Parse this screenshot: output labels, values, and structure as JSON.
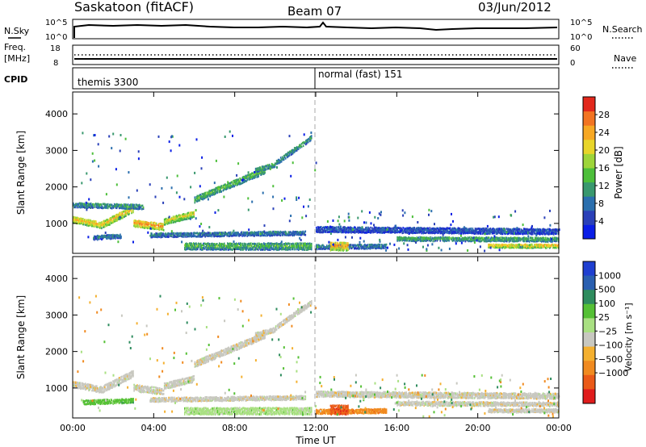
{
  "header": {
    "station": "Saskatoon (fitACF)",
    "beam": "Beam 07",
    "date": "03/Jun/2012"
  },
  "noise_panel": {
    "left_label": "N.Sky",
    "right_label": "N.Search",
    "ticks_left": [
      "10^5",
      "10^0"
    ],
    "ticks_right": [
      "10^5",
      "10^0"
    ]
  },
  "freq_panel": {
    "left_label": "Freq.",
    "left_unit": "[MHz]",
    "right_label": "Nave",
    "ticks_left": [
      "18",
      "8"
    ],
    "ticks_right": [
      "60",
      "0"
    ]
  },
  "cpid_panel": {
    "label": "CPID",
    "segments": [
      {
        "start_hour": 0,
        "text": "themis 3300"
      },
      {
        "start_hour": 12,
        "text": "normal (fast) 151"
      }
    ]
  },
  "chart_data": [
    {
      "type": "heatmap",
      "quantity": "Power",
      "ylabel": "Slant Range [km]",
      "xlabel": "Time UT",
      "xlim_hours": [
        0,
        24
      ],
      "ylim_km": [
        180,
        4600
      ],
      "yticks": [
        1000,
        2000,
        3000,
        4000
      ],
      "xticks": [
        "00:00",
        "04:00",
        "08:00",
        "12:00",
        "16:00",
        "20:00",
        "00:00"
      ],
      "colorbar": {
        "label": "Power [dB]",
        "ticks": [
          "4",
          "8",
          "12",
          "16",
          "20",
          "24",
          "28"
        ],
        "range": [
          0,
          30
        ],
        "colors": [
          "#0a1ee6",
          "#2a40b8",
          "#2b6fae",
          "#39986e",
          "#4dbf3a",
          "#9ed53a",
          "#e8d52a",
          "#f7a824",
          "#f27422",
          "#e2281c"
        ]
      },
      "bands": [
        {
          "t0": 0.0,
          "t1": 1.4,
          "r0": 1150,
          "r1": 1000,
          "w": 180,
          "level": 22
        },
        {
          "t0": 1.4,
          "t1": 3.0,
          "r0": 1000,
          "r1": 1450,
          "w": 200,
          "level": 21
        },
        {
          "t0": 3.0,
          "t1": 4.5,
          "r0": 1050,
          "r1": 950,
          "w": 200,
          "level": 24
        },
        {
          "t0": 4.5,
          "t1": 6.0,
          "r0": 1100,
          "r1": 1300,
          "w": 180,
          "level": 19
        },
        {
          "t0": 6.0,
          "t1": 9.5,
          "r0": 1700,
          "r1": 2500,
          "w": 180,
          "level": 14
        },
        {
          "t0": 9.0,
          "t1": 10.0,
          "r0": 2500,
          "r1": 2650,
          "w": 140,
          "level": 12
        },
        {
          "t0": 10.0,
          "t1": 11.8,
          "r0": 2700,
          "r1": 3400,
          "w": 140,
          "level": 11
        },
        {
          "t0": 0.0,
          "t1": 3.5,
          "r0": 1550,
          "r1": 1500,
          "w": 140,
          "level": 11
        },
        {
          "t0": 1.0,
          "t1": 2.4,
          "r0": 650,
          "r1": 700,
          "w": 120,
          "level": 9
        },
        {
          "t0": 3.8,
          "t1": 11.5,
          "r0": 720,
          "r1": 780,
          "w": 120,
          "level": 9
        },
        {
          "t0": 5.5,
          "t1": 11.8,
          "r0": 420,
          "r1": 420,
          "w": 200,
          "level": 13
        },
        {
          "t0": 12.0,
          "t1": 15.5,
          "r0": 400,
          "r1": 420,
          "w": 130,
          "level": 9
        },
        {
          "t0": 12.7,
          "t1": 13.6,
          "r0": 420,
          "r1": 420,
          "w": 240,
          "level": 24
        },
        {
          "t0": 12.0,
          "t1": 24.0,
          "r0": 880,
          "r1": 820,
          "w": 160,
          "level": 6
        },
        {
          "t0": 16.0,
          "t1": 24.0,
          "r0": 620,
          "r1": 600,
          "w": 120,
          "level": 13
        },
        {
          "t0": 20.5,
          "t1": 24.0,
          "r0": 420,
          "r1": 420,
          "w": 100,
          "level": 22
        }
      ]
    },
    {
      "type": "heatmap",
      "quantity": "Velocity",
      "ylabel": "Slant Range [km]",
      "xlabel": "Time UT",
      "xlim_hours": [
        0,
        24
      ],
      "ylim_km": [
        180,
        4600
      ],
      "yticks": [
        1000,
        2000,
        3000,
        4000
      ],
      "xticks": [
        "00:00",
        "04:00",
        "08:00",
        "12:00",
        "16:00",
        "20:00",
        "00:00"
      ],
      "colorbar": {
        "label": "Velocity [m s⁻¹]",
        "ticks": [
          "1000",
          "500",
          "100",
          "25",
          "−25",
          "−100",
          "−500",
          "−1000"
        ],
        "colors": [
          "#1f3fd0",
          "#2a5fb0",
          "#2e8c5e",
          "#55c035",
          "#a9e082",
          "#c8c8c0",
          "#f4b030",
          "#f08a20",
          "#ea5a18",
          "#e01c1c"
        ]
      },
      "bands": [
        {
          "t0": 0.0,
          "t1": 1.4,
          "r0": 1150,
          "r1": 1000,
          "w": 180,
          "color_index": 5
        },
        {
          "t0": 1.4,
          "t1": 3.0,
          "r0": 1000,
          "r1": 1450,
          "w": 200,
          "color_index": 5
        },
        {
          "t0": 3.0,
          "t1": 4.5,
          "r0": 1050,
          "r1": 950,
          "w": 200,
          "color_index": 5
        },
        {
          "t0": 4.5,
          "t1": 6.0,
          "r0": 1100,
          "r1": 1300,
          "w": 180,
          "color_index": 5
        },
        {
          "t0": 6.0,
          "t1": 9.5,
          "r0": 1700,
          "r1": 2500,
          "w": 180,
          "color_index": 5
        },
        {
          "t0": 9.0,
          "t1": 10.0,
          "r0": 2500,
          "r1": 2650,
          "w": 140,
          "color_index": 5
        },
        {
          "t0": 10.0,
          "t1": 11.8,
          "r0": 2700,
          "r1": 3400,
          "w": 140,
          "color_index": 5
        },
        {
          "t0": 0.5,
          "t1": 3.0,
          "r0": 650,
          "r1": 700,
          "w": 130,
          "color_index": 3
        },
        {
          "t0": 3.8,
          "t1": 11.5,
          "r0": 720,
          "r1": 780,
          "w": 120,
          "color_index": 5
        },
        {
          "t0": 5.5,
          "t1": 11.8,
          "r0": 420,
          "r1": 420,
          "w": 200,
          "color_index": 4
        },
        {
          "t0": 12.0,
          "t1": 15.5,
          "r0": 400,
          "r1": 420,
          "w": 130,
          "color_index": 7
        },
        {
          "t0": 12.7,
          "t1": 13.6,
          "r0": 450,
          "r1": 450,
          "w": 260,
          "color_index": 8
        },
        {
          "t0": 12.0,
          "t1": 24.0,
          "r0": 880,
          "r1": 820,
          "w": 160,
          "color_index": 5
        },
        {
          "t0": 16.0,
          "t1": 24.0,
          "r0": 620,
          "r1": 600,
          "w": 120,
          "color_index": 5
        },
        {
          "t0": 20.5,
          "t1": 24.0,
          "r0": 420,
          "r1": 420,
          "w": 100,
          "color_index": 5
        }
      ]
    }
  ]
}
